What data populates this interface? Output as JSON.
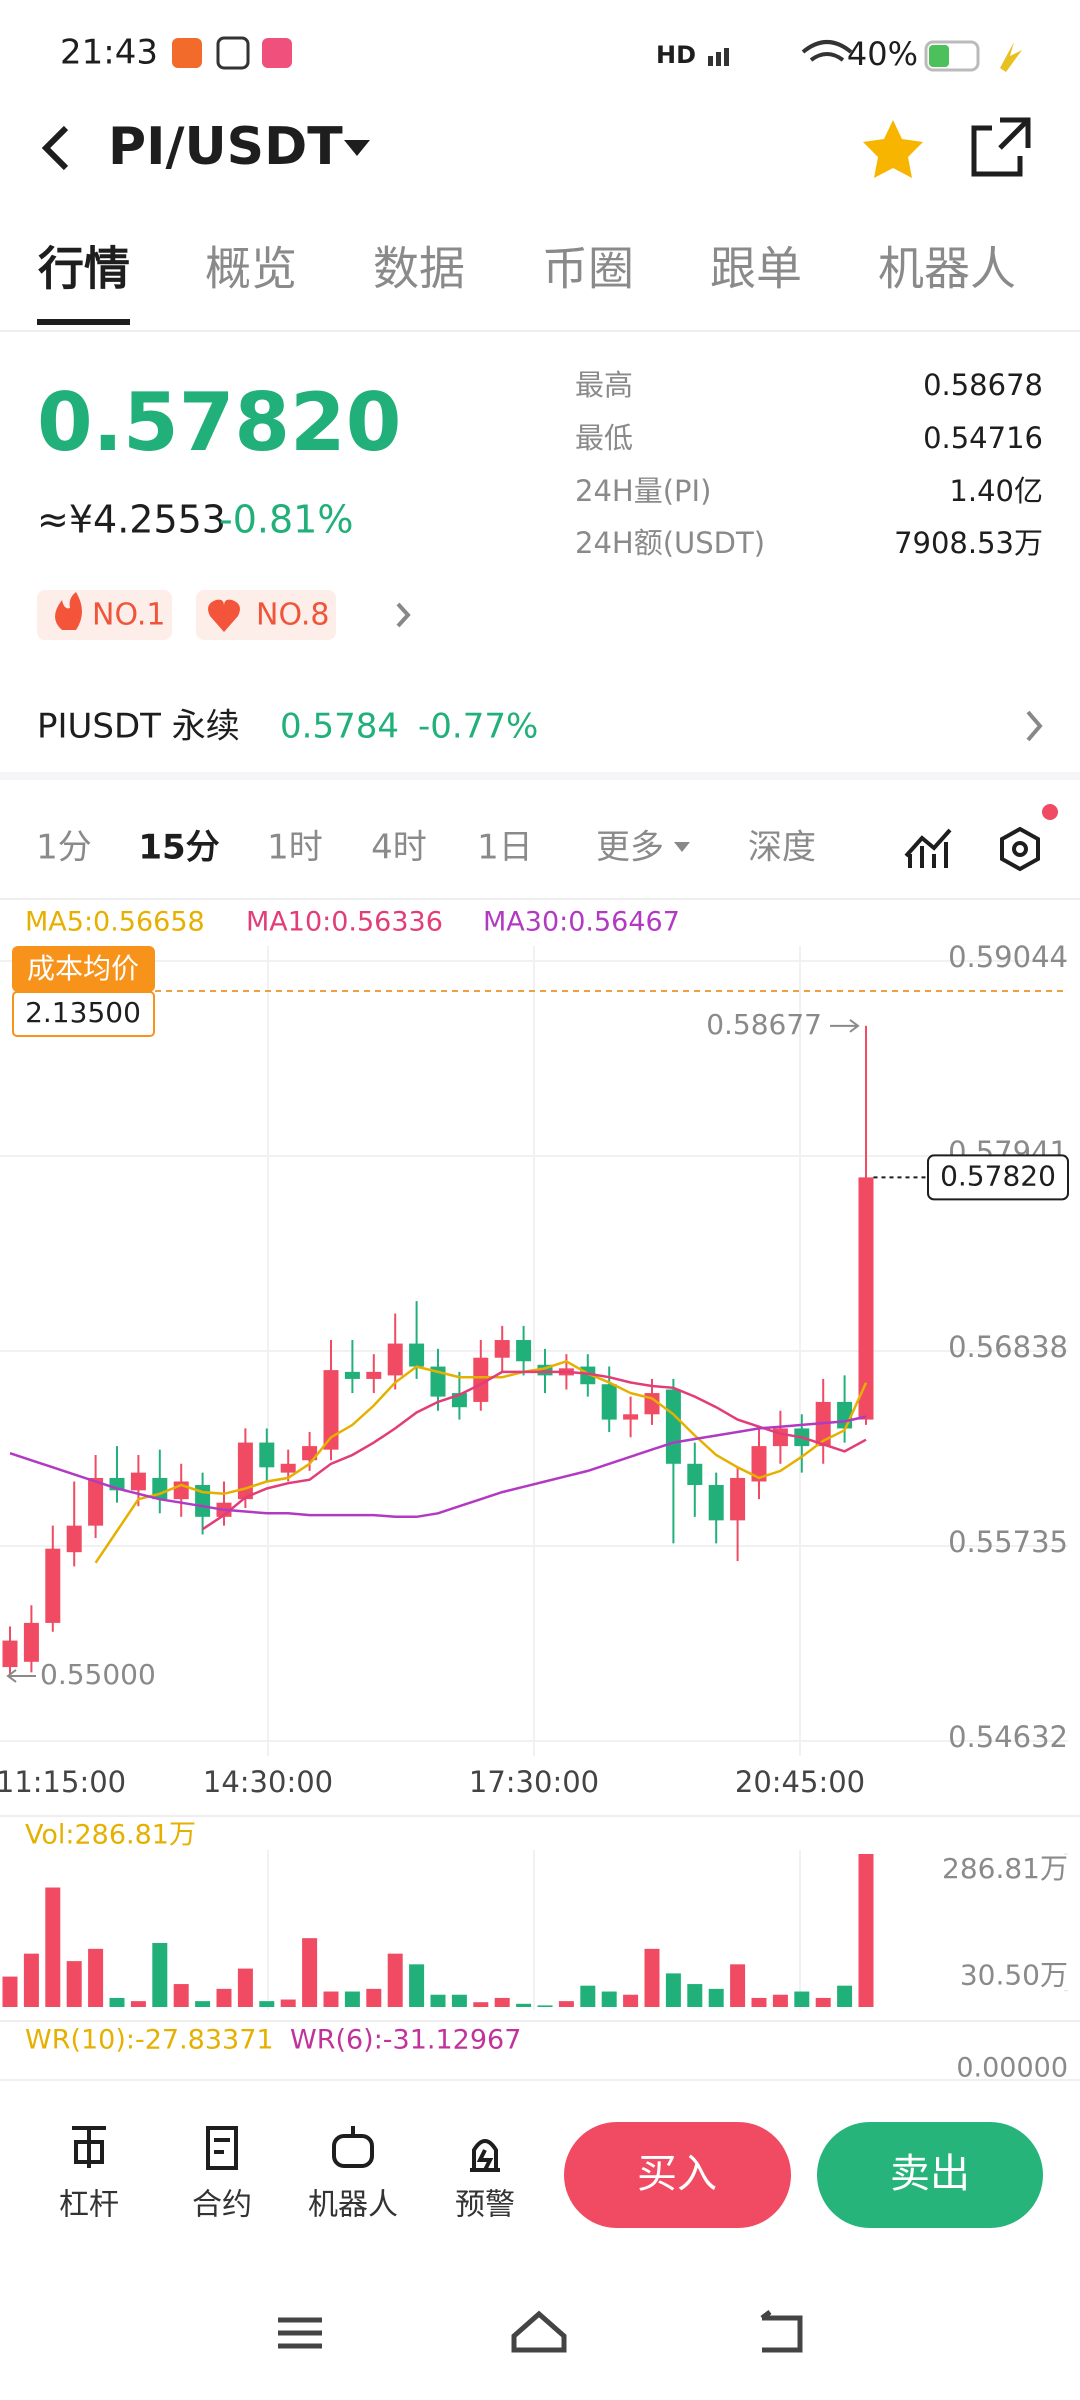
{
  "status_bar": {
    "time": "21:43",
    "battery": "40%"
  },
  "header": {
    "pair": "PI/USDT"
  },
  "tabs": [
    "行情",
    "概览",
    "数据",
    "币圈",
    "跟单",
    "机器人"
  ],
  "ticker": {
    "price": "0.57820",
    "cny": "≈¥4.2553",
    "change": "-0.81%",
    "badges": [
      "NO.1",
      "NO.8"
    ],
    "stats": [
      {
        "label": "最高",
        "value": "0.58678"
      },
      {
        "label": "最低",
        "value": "0.54716"
      },
      {
        "label": "24H量(PI)",
        "value": "1.40亿"
      },
      {
        "label": "24H额(USDT)",
        "value": "7908.53万"
      }
    ]
  },
  "perpetual": {
    "name": "PIUSDT 永续",
    "price": "0.5784",
    "change": "-0.77%"
  },
  "intervals": [
    "1分",
    "15分",
    "1时",
    "4时",
    "1日",
    "更多",
    "深度"
  ],
  "chart_data": {
    "type": "candlestick",
    "time_labels": [
      "11:15:00",
      "14:30:00",
      "17:30:00",
      "20:45:00"
    ],
    "ylim": [
      0.54632,
      0.59044
    ],
    "yticks": [
      0.59044,
      0.57941,
      0.56838,
      0.55735,
      0.54632
    ],
    "up_color": "#f04b62",
    "down_color": "#22b07a",
    "open": [
      0.5505,
      0.5508,
      0.553,
      0.557,
      0.5585,
      0.5612,
      0.5605,
      0.5612,
      0.56,
      0.5608,
      0.559,
      0.56,
      0.5632,
      0.5615,
      0.5622,
      0.5628,
      0.5672,
      0.5668,
      0.567,
      0.5688,
      0.5675,
      0.566,
      0.5655,
      0.568,
      0.569,
      0.5676,
      0.567,
      0.5675,
      0.5665,
      0.5645,
      0.5648,
      0.5662,
      0.562,
      0.5608,
      0.5588,
      0.561,
      0.563,
      0.564,
      0.563,
      0.5655,
      0.5645
    ],
    "close": [
      0.552,
      0.553,
      0.5572,
      0.5585,
      0.5612,
      0.5605,
      0.5615,
      0.56,
      0.561,
      0.559,
      0.5598,
      0.5632,
      0.5618,
      0.562,
      0.563,
      0.5673,
      0.5668,
      0.5672,
      0.5688,
      0.5675,
      0.5658,
      0.5652,
      0.568,
      0.569,
      0.5678,
      0.567,
      0.5674,
      0.5665,
      0.5645,
      0.5648,
      0.566,
      0.562,
      0.5608,
      0.5588,
      0.5612,
      0.563,
      0.564,
      0.563,
      0.5655,
      0.564,
      0.5782
    ],
    "high": [
      0.5528,
      0.554,
      0.5585,
      0.561,
      0.5625,
      0.563,
      0.5625,
      0.5628,
      0.562,
      0.5615,
      0.561,
      0.564,
      0.564,
      0.5628,
      0.5638,
      0.569,
      0.569,
      0.5682,
      0.5705,
      0.5712,
      0.5685,
      0.5672,
      0.569,
      0.5698,
      0.5698,
      0.5685,
      0.5682,
      0.5682,
      0.5675,
      0.5658,
      0.5668,
      0.5668,
      0.5632,
      0.5615,
      0.5618,
      0.564,
      0.565,
      0.5648,
      0.5668,
      0.567,
      0.58677
    ],
    "low": [
      0.55,
      0.5502,
      0.5525,
      0.5562,
      0.5578,
      0.5598,
      0.5596,
      0.5592,
      0.559,
      0.558,
      0.5585,
      0.5595,
      0.561,
      0.561,
      0.5616,
      0.5622,
      0.566,
      0.566,
      0.5662,
      0.5668,
      0.565,
      0.5645,
      0.565,
      0.5672,
      0.567,
      0.566,
      0.5662,
      0.5658,
      0.5638,
      0.5635,
      0.5642,
      0.5575,
      0.559,
      0.5575,
      0.5565,
      0.56,
      0.562,
      0.5615,
      0.562,
      0.5632,
      0.5642
    ],
    "series": [
      {
        "name": "MA5:0.56658",
        "color": "#e6b000",
        "values": [
          null,
          null,
          null,
          null,
          0.5564,
          0.5582,
          0.56,
          0.5603,
          0.5608,
          0.5604,
          0.5603,
          0.5606,
          0.561,
          0.5612,
          0.562,
          0.5635,
          0.5642,
          0.5653,
          0.5666,
          0.5675,
          0.5672,
          0.5669,
          0.5669,
          0.5669,
          0.5672,
          0.5674,
          0.5678,
          0.5671,
          0.5666,
          0.566,
          0.5657,
          0.5648,
          0.5636,
          0.5625,
          0.5618,
          0.5612,
          0.5616,
          0.5624,
          0.5633,
          0.5639,
          0.56658
        ]
      },
      {
        "name": "MA10:0.56336",
        "color": "#e23d78",
        "values": [
          null,
          null,
          null,
          null,
          null,
          null,
          null,
          null,
          null,
          0.5583,
          0.5591,
          0.5601,
          0.5606,
          0.5609,
          0.5611,
          0.562,
          0.5625,
          0.5632,
          0.564,
          0.5649,
          0.5655,
          0.5659,
          0.5665,
          0.5672,
          0.5672,
          0.5672,
          0.5672,
          0.5671,
          0.5669,
          0.5666,
          0.5664,
          0.5663,
          0.5658,
          0.5652,
          0.5645,
          0.5641,
          0.5637,
          0.5635,
          0.5631,
          0.5627,
          0.56336
        ]
      },
      {
        "name": "MA30:0.56467",
        "color": "#b23ac2",
        "values": [
          0.5626,
          0.5622,
          0.5618,
          0.5614,
          0.561,
          0.5606,
          0.5603,
          0.56,
          0.5598,
          0.5596,
          0.5594,
          0.5593,
          0.5592,
          0.5592,
          0.5591,
          0.5591,
          0.5591,
          0.5591,
          0.559,
          0.559,
          0.5592,
          0.5596,
          0.56,
          0.5604,
          0.5607,
          0.561,
          0.5613,
          0.5616,
          0.562,
          0.5624,
          0.5628,
          0.5632,
          0.5634,
          0.5636,
          0.5638,
          0.564,
          0.5641,
          0.5642,
          0.5643,
          0.5644,
          0.56467
        ]
      }
    ],
    "high_marker": {
      "value": 0.58677,
      "label": "0.58677"
    },
    "low_marker": {
      "value": 0.55,
      "label": "0.55000"
    },
    "last_price": {
      "value": 0.5782,
      "label": "0.57820"
    },
    "cost_average": {
      "title": "成本均价",
      "value": "2.13500"
    },
    "volume": {
      "title": "Vol:286.81万",
      "ylim": [
        0,
        286.81
      ],
      "yticks": [
        {
          "value": 286.81,
          "label": "286.81万"
        },
        {
          "value": 30.5,
          "label": "30.50万"
        }
      ],
      "values": [
        57,
        100,
        224,
        86,
        109,
        17,
        11,
        120,
        43,
        11,
        34,
        72,
        11,
        14,
        129,
        29,
        29,
        34,
        100,
        80,
        23,
        23,
        9,
        17,
        6,
        3,
        11,
        40,
        29,
        23,
        109,
        63,
        43,
        34,
        80,
        17,
        23,
        29,
        17,
        40,
        286.81
      ]
    },
    "indicator": {
      "labels": [
        "WR(10):-27.83371",
        "WR(6):-31.12967"
      ],
      "axis_label": "0.00000"
    }
  },
  "actions": [
    "杠杆",
    "合约",
    "机器人",
    "预警"
  ],
  "buy": "买入",
  "sell": "卖出"
}
